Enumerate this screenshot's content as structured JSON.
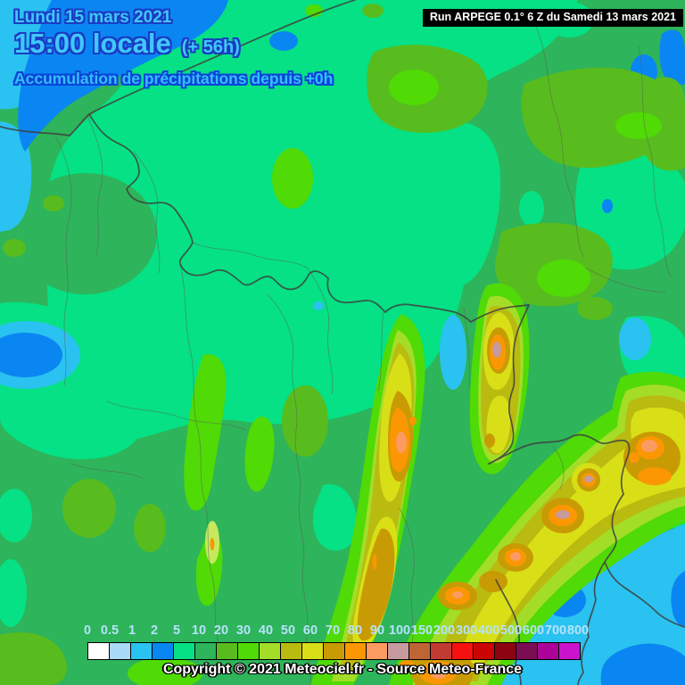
{
  "header": {
    "date_line": "Lundi 15 mars 2021",
    "time_line": "15:00 locale",
    "offset": "(+ 56h)",
    "subtitle": "Accumulation de précipitations depuis +0h"
  },
  "run_info": {
    "text": "Run ARPEGE 0.1° 6 Z du Samedi 13 mars 2021"
  },
  "legend": {
    "entries": [
      {
        "label": "0",
        "color": "#ffffff"
      },
      {
        "label": "0.5",
        "color": "#a9daf6"
      },
      {
        "label": "1",
        "color": "#2ac2f0"
      },
      {
        "label": "2",
        "color": "#0a86f2"
      },
      {
        "label": "5",
        "color": "#05e184"
      },
      {
        "label": "10",
        "color": "#2eb45a"
      },
      {
        "label": "20",
        "color": "#58bc1e"
      },
      {
        "label": "30",
        "color": "#50da06"
      },
      {
        "label": "40",
        "color": "#a4dd28"
      },
      {
        "label": "50",
        "color": "#b9bb10"
      },
      {
        "label": "60",
        "color": "#d9df16"
      },
      {
        "label": "70",
        "color": "#c89b04"
      },
      {
        "label": "80",
        "color": "#fa9703"
      },
      {
        "label": "90",
        "color": "#fb9b62"
      },
      {
        "label": "100",
        "color": "#c79b9d"
      },
      {
        "label": "150",
        "color": "#bf6434"
      },
      {
        "label": "200",
        "color": "#c23b33"
      },
      {
        "label": "300",
        "color": "#f61111"
      },
      {
        "label": "400",
        "color": "#cb0404"
      },
      {
        "label": "500",
        "color": "#8c0410"
      },
      {
        "label": "600",
        "color": "#7b0d53"
      },
      {
        "label": "700",
        "color": "#ab0397"
      },
      {
        "label": "800",
        "color": "#cb13cb"
      }
    ]
  },
  "footer": {
    "copyright": "Copyright © 2021 Meteociel.fr - Source Meteo-France"
  }
}
